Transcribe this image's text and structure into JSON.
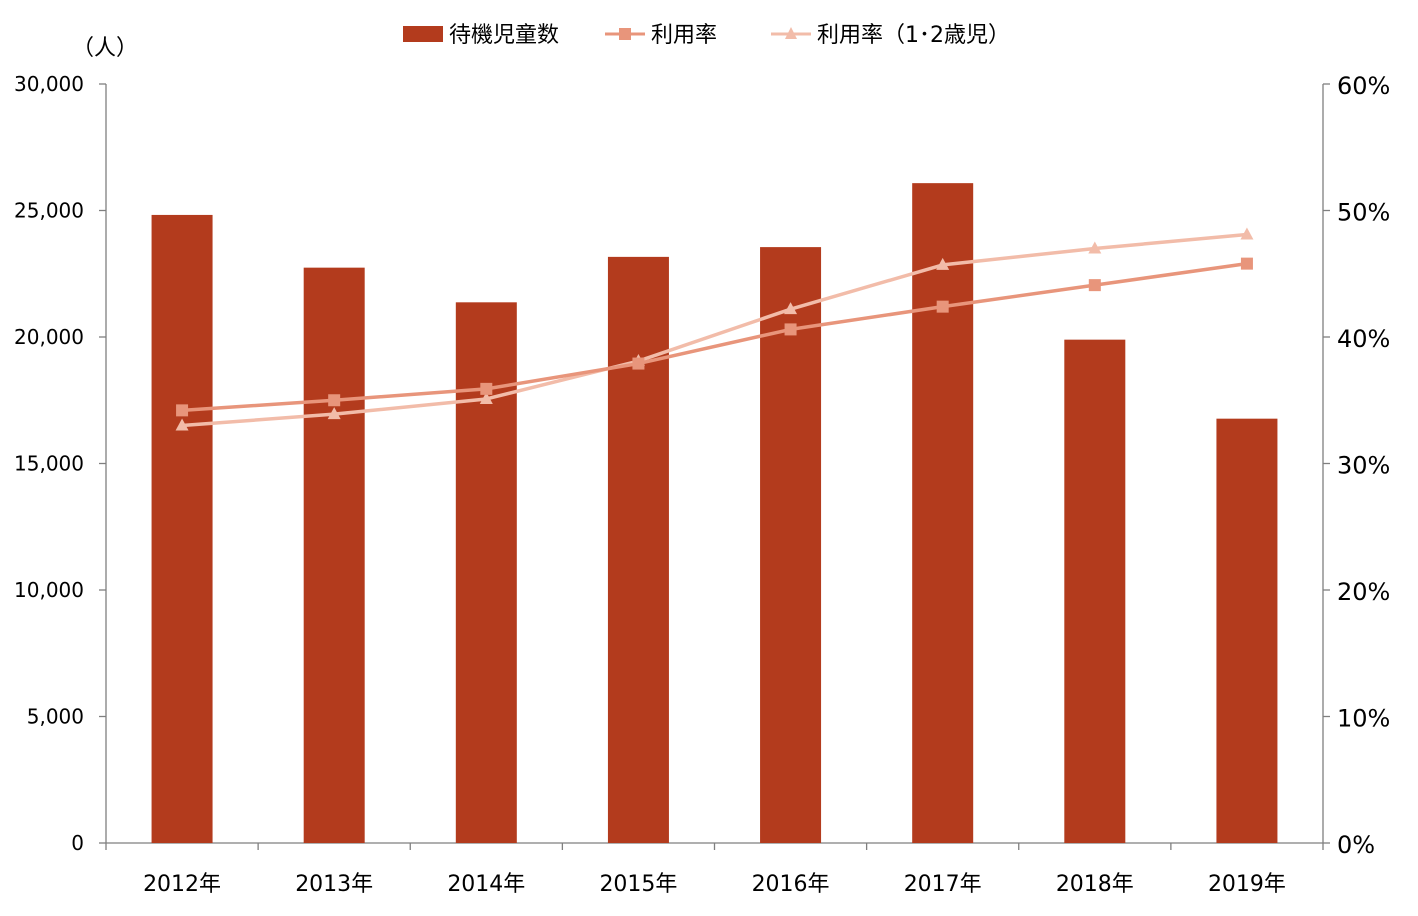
{
  "chart_data": {
    "type": "bar",
    "categories": [
      "2012年",
      "2013年",
      "2014年",
      "2015年",
      "2016年",
      "2017年",
      "2018年",
      "2019年"
    ],
    "unit_label": "（人）",
    "y_left": {
      "ylim": [
        0,
        30000
      ],
      "ticks": [
        0,
        5000,
        10000,
        15000,
        20000,
        25000,
        30000
      ],
      "tick_labels": [
        "0",
        "5,000",
        "10,000",
        "15,000",
        "20,000",
        "25,000",
        "30,000"
      ]
    },
    "y_right": {
      "ylim": [
        0,
        60
      ],
      "ticks": [
        0,
        10,
        20,
        30,
        40,
        50,
        60
      ],
      "tick_labels": [
        "0%",
        "10%",
        "20%",
        "30%",
        "40%",
        "50%",
        "60%"
      ]
    },
    "legend_position": "top-center",
    "grid": false,
    "series": [
      {
        "name": "待機児童数",
        "type": "bar",
        "axis": "left",
        "color": "#b33b1d",
        "values": [
          24825,
          22741,
          21371,
          23167,
          23553,
          26081,
          19895,
          16772
        ]
      },
      {
        "name": "利用率",
        "type": "line",
        "marker": "square",
        "axis": "right",
        "color": "#e8957b",
        "values": [
          34.2,
          35.0,
          35.9,
          37.9,
          40.6,
          42.4,
          44.1,
          45.8
        ]
      },
      {
        "name": "利用率（1･2歳児）",
        "type": "line",
        "marker": "triangle",
        "axis": "right",
        "color": "#f2bca9",
        "values": [
          33.0,
          33.9,
          35.1,
          38.1,
          42.2,
          45.7,
          47.0,
          48.1
        ]
      }
    ]
  }
}
